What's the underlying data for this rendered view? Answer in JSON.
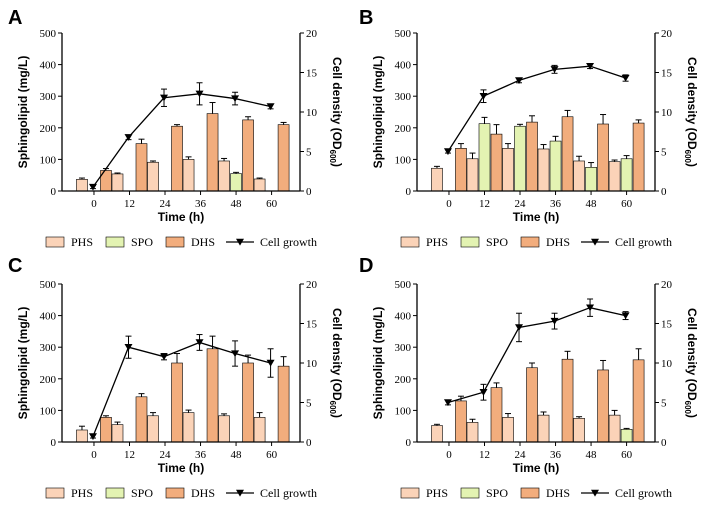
{
  "colors": {
    "PHS": "#fbd3b8",
    "SPO": "#e3f3b2",
    "DHS": "#f2ad7d",
    "line": "#000000",
    "axis": "#000000"
  },
  "chart_data": [
    {
      "panel": "A",
      "type": "bar",
      "xlabel": "Time (h)",
      "ylabel": "Sphingolipid (mg/L)",
      "y2label": "Cell density (OD600)",
      "ylim": [
        0,
        500
      ],
      "y2lim": [
        0,
        20
      ],
      "yticks": [
        0,
        100,
        200,
        300,
        400,
        500
      ],
      "y2ticks": [
        0,
        5,
        10,
        15,
        20
      ],
      "categories": [
        "0",
        "12",
        "24",
        "36",
        "48",
        "60"
      ],
      "series": [
        {
          "name": "PHS",
          "values": [
            37,
            54,
            91,
            100,
            95,
            38
          ],
          "errors": [
            4,
            3,
            4,
            8,
            8,
            3
          ]
        },
        {
          "name": "SPO",
          "values": [
            null,
            null,
            null,
            null,
            55,
            null
          ],
          "errors": [
            null,
            null,
            null,
            null,
            4,
            null
          ]
        },
        {
          "name": "DHS",
          "values": [
            65,
            150,
            205,
            245,
            225,
            210
          ],
          "errors": [
            6,
            14,
            5,
            35,
            10,
            7
          ]
        }
      ],
      "line": {
        "name": "Cell growth",
        "values": [
          0.5,
          6.8,
          11.8,
          12.3,
          11.7,
          10.7
        ],
        "errors": [
          0.2,
          0.3,
          1.1,
          1.4,
          0.8,
          0.3
        ]
      },
      "legend": [
        "PHS",
        "SPO",
        "DHS",
        "Cell growth"
      ]
    },
    {
      "panel": "B",
      "type": "bar",
      "xlabel": "Time (h)",
      "ylabel": "Sphingolipid (mg/L)",
      "y2label": "Cell density (OD600)",
      "ylim": [
        0,
        500
      ],
      "y2lim": [
        0,
        20
      ],
      "yticks": [
        0,
        100,
        200,
        300,
        400,
        500
      ],
      "y2ticks": [
        0,
        5,
        10,
        15,
        20
      ],
      "categories": [
        "0",
        "12",
        "24",
        "36",
        "48",
        "60"
      ],
      "series": [
        {
          "name": "PHS",
          "values": [
            72,
            102,
            135,
            133,
            95,
            93
          ],
          "errors": [
            6,
            18,
            15,
            14,
            15,
            5
          ]
        },
        {
          "name": "SPO",
          "values": [
            null,
            213,
            205,
            158,
            75,
            102
          ],
          "errors": [
            null,
            20,
            6,
            15,
            15,
            10
          ]
        },
        {
          "name": "DHS",
          "values": [
            135,
            180,
            218,
            235,
            212,
            215
          ],
          "errors": [
            15,
            30,
            20,
            20,
            30,
            10
          ]
        }
      ],
      "line": {
        "name": "Cell growth",
        "values": [
          5.0,
          12.0,
          14.0,
          15.4,
          15.8,
          14.3
        ],
        "errors": [
          0.2,
          0.8,
          0.3,
          0.5,
          0.3,
          0.4
        ]
      },
      "legend": [
        "PHS",
        "SPO",
        "DHS",
        "Cell growth"
      ]
    },
    {
      "panel": "C",
      "type": "bar",
      "xlabel": "Time (h)",
      "ylabel": "Sphingolipid (mg/L)",
      "y2label": "Cell density (OD600)",
      "ylim": [
        0,
        500
      ],
      "y2lim": [
        0,
        20
      ],
      "yticks": [
        0,
        100,
        200,
        300,
        400,
        500
      ],
      "y2ticks": [
        0,
        5,
        10,
        15,
        20
      ],
      "categories": [
        "0",
        "12",
        "24",
        "36",
        "48",
        "60"
      ],
      "series": [
        {
          "name": "PHS",
          "values": [
            38,
            55,
            83,
            93,
            83,
            78
          ],
          "errors": [
            12,
            8,
            10,
            8,
            6,
            15
          ]
        },
        {
          "name": "SPO",
          "values": [
            null,
            null,
            null,
            null,
            null,
            null
          ],
          "errors": [
            null,
            null,
            null,
            null,
            null,
            null
          ]
        },
        {
          "name": "DHS",
          "values": [
            78,
            143,
            250,
            295,
            250,
            240
          ],
          "errors": [
            5,
            10,
            30,
            40,
            25,
            30
          ]
        }
      ],
      "line": {
        "name": "Cell growth",
        "values": [
          0.7,
          12.0,
          10.8,
          12.6,
          11.2,
          10.0
        ],
        "errors": [
          0.2,
          1.4,
          0.4,
          1.0,
          1.6,
          1.8
        ]
      },
      "legend": [
        "PHS",
        "SPO",
        "DHS",
        "Cell growth"
      ]
    },
    {
      "panel": "D",
      "type": "bar",
      "xlabel": "Time (h)",
      "ylabel": "Sphingolipid (mg/L)",
      "y2label": "Cell density (OD600)",
      "ylim": [
        0,
        500
      ],
      "y2lim": [
        0,
        20
      ],
      "yticks": [
        0,
        100,
        200,
        300,
        400,
        500
      ],
      "y2ticks": [
        0,
        5,
        10,
        15,
        20
      ],
      "categories": [
        "0",
        "12",
        "24",
        "36",
        "48",
        "60"
      ],
      "series": [
        {
          "name": "PHS",
          "values": [
            52,
            62,
            78,
            85,
            75,
            85
          ],
          "errors": [
            4,
            10,
            12,
            10,
            5,
            15
          ]
        },
        {
          "name": "SPO",
          "values": [
            null,
            null,
            null,
            null,
            null,
            40
          ],
          "errors": [
            null,
            null,
            null,
            null,
            null,
            3
          ]
        },
        {
          "name": "DHS",
          "values": [
            130,
            172,
            235,
            262,
            228,
            260
          ],
          "errors": [
            15,
            15,
            15,
            25,
            30,
            35
          ]
        }
      ],
      "line": {
        "name": "Cell growth",
        "values": [
          5.0,
          6.3,
          14.5,
          15.3,
          17.0,
          16.0
        ],
        "errors": [
          0.3,
          1.0,
          1.8,
          1.0,
          1.1,
          0.5
        ]
      },
      "legend": [
        "PHS",
        "SPO",
        "DHS",
        "Cell growth"
      ]
    }
  ]
}
